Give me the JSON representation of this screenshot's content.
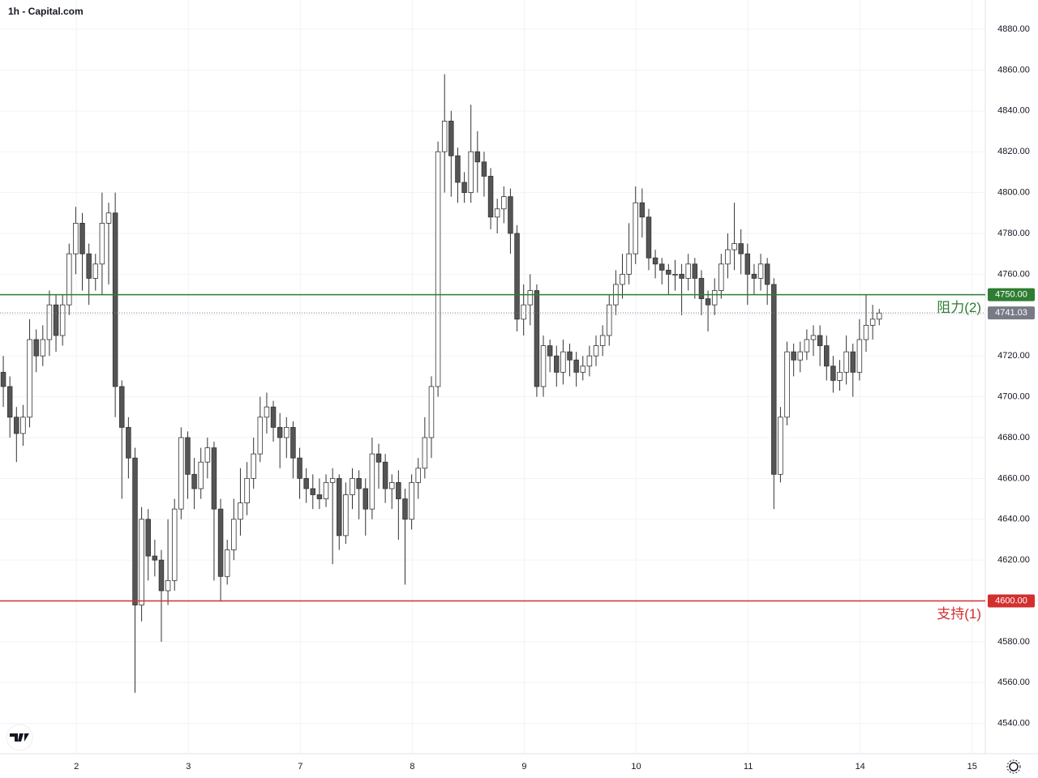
{
  "chart_data": {
    "type": "candlestick",
    "title": "1h - Capital.com",
    "xlim": [
      -0.5,
      149.1
    ],
    "xticks": [
      {
        "value": 11.1,
        "label": "2"
      },
      {
        "value": 28.1,
        "label": "3"
      },
      {
        "value": 45.1,
        "label": "7"
      },
      {
        "value": 62.1,
        "label": "8"
      },
      {
        "value": 79.1,
        "label": "9"
      },
      {
        "value": 96.1,
        "label": "10"
      },
      {
        "value": 113.1,
        "label": "11"
      },
      {
        "value": 130.1,
        "label": "14"
      },
      {
        "value": 147.1,
        "label": "15"
      }
    ],
    "ylim": [
      4525.2,
      4894.3
    ],
    "yticks": [
      {
        "value": 4540,
        "label": "4540.00"
      },
      {
        "value": 4560,
        "label": "4560.00"
      },
      {
        "value": 4580,
        "label": "4580.00"
      },
      {
        "value": 4600,
        "label": "4600.00"
      },
      {
        "value": 4620,
        "label": "4620.00"
      },
      {
        "value": 4640,
        "label": "4640.00"
      },
      {
        "value": 4660,
        "label": "4660.00"
      },
      {
        "value": 4680,
        "label": "4680.00"
      },
      {
        "value": 4700,
        "label": "4700.00"
      },
      {
        "value": 4720,
        "label": "4720.00"
      },
      {
        "value": 4740,
        "label": "4740.00"
      },
      {
        "value": 4760,
        "label": "4760.00"
      },
      {
        "value": 4780,
        "label": "4780.00"
      },
      {
        "value": 4800,
        "label": "4800.00"
      },
      {
        "value": 4820,
        "label": "4820.00"
      },
      {
        "value": 4840,
        "label": "4840.00"
      },
      {
        "value": 4860,
        "label": "4860.00"
      },
      {
        "value": 4880,
        "label": "4880.00"
      }
    ],
    "grid": true,
    "up_color": "#ffffff",
    "down_color": "#555555",
    "edge_color": "#333333",
    "open": [
      4712,
      4705,
      4690,
      4682,
      4690,
      4728,
      4720,
      4728,
      4745,
      4730,
      4745,
      4770,
      4785,
      4770,
      4758,
      4765,
      4785,
      4790,
      4705,
      4685,
      4670,
      4598,
      4640,
      4622,
      4620,
      4605,
      4610,
      4645,
      4680,
      4662,
      4655,
      4668,
      4675,
      4645,
      4612,
      4625,
      4640,
      4648,
      4660,
      4672,
      4690,
      4695,
      4685,
      4680,
      4685,
      4670,
      4660,
      4655,
      4652,
      4650,
      4658,
      4660,
      4632,
      4652,
      4660,
      4655,
      4645,
      4672,
      4668,
      4655,
      4658,
      4650,
      4640,
      4658,
      4665,
      4680,
      4705,
      4820,
      4835,
      4818,
      4805,
      4800,
      4820,
      4815,
      4808,
      4788,
      4792,
      4798,
      4780,
      4738,
      4745,
      4752,
      4705,
      4725,
      4720,
      4712,
      4722,
      4718,
      4712,
      4715,
      4720,
      4725,
      4730,
      4745,
      4755,
      4760,
      4770,
      4795,
      4788,
      4768,
      4765,
      4762,
      4760,
      4760,
      4758,
      4765,
      4758,
      4748,
      4745,
      4752,
      4765,
      4772,
      4775,
      4770,
      4760,
      4758,
      4765,
      4755,
      4662,
      4690,
      4722,
      4718,
      4722,
      4728,
      4730,
      4725,
      4715,
      4708,
      4712,
      4722,
      4712,
      4728,
      4735,
      4738
    ],
    "high": [
      4720,
      4710,
      4695,
      4696,
      4738,
      4733,
      4735,
      4752,
      4750,
      4750,
      4775,
      4793,
      4790,
      4775,
      4770,
      4800,
      4795,
      4800,
      4708,
      4690,
      4675,
      4646,
      4645,
      4630,
      4625,
      4640,
      4650,
      4685,
      4683,
      4670,
      4675,
      4680,
      4678,
      4650,
      4630,
      4650,
      4665,
      4668,
      4680,
      4700,
      4702,
      4698,
      4692,
      4690,
      4688,
      4675,
      4665,
      4662,
      4660,
      4662,
      4665,
      4662,
      4658,
      4665,
      4664,
      4660,
      4680,
      4677,
      4672,
      4662,
      4664,
      4655,
      4662,
      4670,
      4690,
      4710,
      4825,
      4858,
      4840,
      4822,
      4810,
      4843,
      4830,
      4820,
      4812,
      4797,
      4803,
      4802,
      4784,
      4755,
      4760,
      4755,
      4730,
      4728,
      4725,
      4728,
      4726,
      4722,
      4720,
      4725,
      4730,
      4735,
      4750,
      4762,
      4770,
      4785,
      4803,
      4802,
      4792,
      4772,
      4768,
      4765,
      4767,
      4765,
      4770,
      4768,
      4762,
      4752,
      4758,
      4770,
      4780,
      4795,
      4782,
      4775,
      4765,
      4770,
      4768,
      4758,
      4695,
      4727,
      4726,
      4727,
      4733,
      4735,
      4735,
      4730,
      4720,
      4718,
      4730,
      4726,
      4738,
      4750,
      4745,
      4743
    ],
    "low": [
      4695,
      4680,
      4668,
      4676,
      4685,
      4712,
      4715,
      4720,
      4722,
      4725,
      4740,
      4760,
      4752,
      4745,
      4752,
      4750,
      4755,
      4690,
      4650,
      4660,
      4555,
      4590,
      4610,
      4612,
      4580,
      4598,
      4605,
      4640,
      4650,
      4645,
      4650,
      4660,
      4610,
      4600,
      4608,
      4620,
      4632,
      4642,
      4655,
      4668,
      4682,
      4678,
      4665,
      4670,
      4660,
      4650,
      4648,
      4645,
      4645,
      4646,
      4618,
      4625,
      4628,
      4645,
      4640,
      4632,
      4640,
      4655,
      4648,
      4645,
      4630,
      4608,
      4635,
      4650,
      4660,
      4670,
      4700,
      4800,
      4798,
      4795,
      4795,
      4795,
      4800,
      4798,
      4782,
      4780,
      4785,
      4770,
      4732,
      4730,
      4735,
      4700,
      4700,
      4712,
      4705,
      4706,
      4710,
      4705,
      4708,
      4710,
      4715,
      4720,
      4725,
      4740,
      4748,
      4755,
      4765,
      4778,
      4762,
      4758,
      4755,
      4750,
      4752,
      4740,
      4752,
      4748,
      4740,
      4732,
      4740,
      4748,
      4758,
      4762,
      4760,
      4745,
      4750,
      4752,
      4745,
      4645,
      4658,
      4686,
      4710,
      4712,
      4718,
      4720,
      4715,
      4708,
      4702,
      4703,
      4706,
      4700,
      4708,
      4722,
      4728,
      4735
    ],
    "close": [
      4705,
      4690,
      4682,
      4690,
      4728,
      4720,
      4728,
      4745,
      4730,
      4745,
      4770,
      4785,
      4770,
      4758,
      4765,
      4785,
      4790,
      4705,
      4685,
      4670,
      4598,
      4640,
      4622,
      4620,
      4605,
      4610,
      4645,
      4680,
      4662,
      4655,
      4668,
      4675,
      4645,
      4612,
      4625,
      4640,
      4648,
      4660,
      4672,
      4690,
      4695,
      4685,
      4680,
      4685,
      4670,
      4660,
      4655,
      4652,
      4650,
      4658,
      4660,
      4632,
      4652,
      4660,
      4655,
      4645,
      4672,
      4668,
      4655,
      4658,
      4650,
      4640,
      4658,
      4665,
      4680,
      4705,
      4820,
      4835,
      4818,
      4805,
      4800,
      4820,
      4815,
      4808,
      4788,
      4792,
      4798,
      4780,
      4738,
      4745,
      4752,
      4705,
      4725,
      4720,
      4712,
      4722,
      4718,
      4712,
      4715,
      4720,
      4725,
      4730,
      4745,
      4755,
      4760,
      4770,
      4795,
      4788,
      4768,
      4765,
      4762,
      4760,
      4760,
      4758,
      4765,
      4758,
      4748,
      4745,
      4752,
      4765,
      4772,
      4775,
      4770,
      4760,
      4758,
      4765,
      4755,
      4662,
      4690,
      4722,
      4718,
      4722,
      4728,
      4730,
      4725,
      4715,
      4708,
      4712,
      4722,
      4712,
      4728,
      4735,
      4738,
      4741
    ],
    "levels": [
      {
        "name": "阻力(2)",
        "value": 4750,
        "value_label": "4750.00",
        "color": "#2e7d32"
      },
      {
        "name": "支持(1)",
        "value": 4600,
        "value_label": "4600.00",
        "color": "#d32f2f"
      }
    ],
    "last_price": {
      "value": 4741.03,
      "value_label": "4741.03",
      "color": "#787b86"
    }
  }
}
